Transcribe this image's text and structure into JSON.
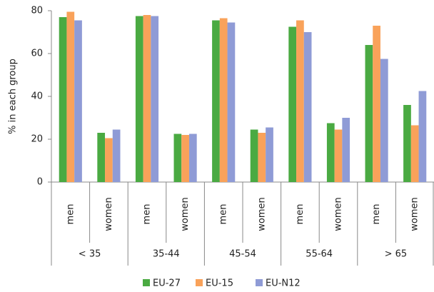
{
  "chart_data": {
    "type": "bar",
    "y_label": "% in each group",
    "groups": [
      "< 35",
      "35-44",
      "45-54",
      "55-64",
      "> 65"
    ],
    "categories": [
      "men",
      "women",
      "men",
      "women",
      "men",
      "women",
      "men",
      "women",
      "men",
      "women"
    ],
    "series": [
      {
        "name": "EU-27",
        "color": "#4aaa42",
        "values": [
          77,
          23,
          77.5,
          22.5,
          75.5,
          24.5,
          72.5,
          27.5,
          64,
          36
        ]
      },
      {
        "name": "EU-15",
        "color": "#f9a25a",
        "values": [
          79.5,
          20.5,
          78,
          22,
          76.5,
          23,
          75.5,
          24.5,
          73,
          26.5
        ]
      },
      {
        "name": "EU-N12",
        "color": "#8f9bd6",
        "values": [
          75.5,
          24.5,
          77.5,
          22.5,
          74.5,
          25.5,
          70,
          30,
          57.5,
          42.5
        ]
      }
    ],
    "ylim": [
      0,
      80
    ],
    "yticks": [
      0,
      20,
      40,
      60,
      80
    ],
    "grid": false,
    "legend": "bottom"
  }
}
